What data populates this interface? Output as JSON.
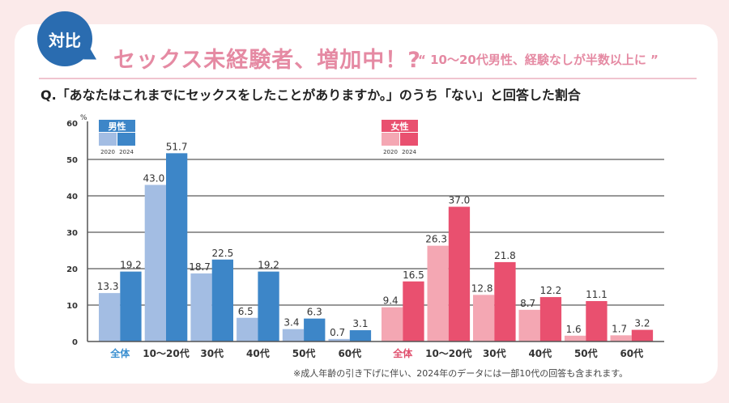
{
  "header": {
    "badge": "対比",
    "title": "セックス未経験者、増加中！?",
    "subtitle": "“ 10～20代男性、経験なしが半数以上に ”",
    "question": "Q.「あなたはこれまでにセックスをしたことがありますか。」のうち「ない」と回答した割合"
  },
  "chart_data": {
    "type": "bar",
    "ylabel": "%",
    "ylim": [
      0,
      60
    ],
    "yticks": [
      0,
      10,
      20,
      30,
      40,
      50,
      60
    ],
    "grid": true,
    "legend_placement": "top-left of each group",
    "groups": [
      {
        "name": "男性",
        "label_color": "#3a8fd0",
        "colors": {
          "2020": "#a3bde3",
          "2024": "#3d86c8"
        },
        "legend_years": [
          "2020",
          "2024"
        ],
        "categories": [
          "全体",
          "10～20代",
          "30代",
          "40代",
          "50代",
          "60代"
        ],
        "series": [
          {
            "name": "2020",
            "values": [
              13.3,
              43.0,
              18.7,
              6.5,
              3.4,
              0.7
            ]
          },
          {
            "name": "2024",
            "values": [
              19.2,
              51.7,
              22.5,
              19.2,
              6.3,
              3.1
            ]
          }
        ],
        "labels_2020": [
          "13.3",
          "43.0",
          "18.7",
          "6.5",
          "3.4",
          "0.7"
        ],
        "labels_2024": [
          "19.2",
          "51.7",
          "22.5",
          "19.2",
          "6.3",
          "3.1"
        ]
      },
      {
        "name": "女性",
        "label_color": "#e0506e",
        "colors": {
          "2020": "#f4a7b3",
          "2024": "#e9506f"
        },
        "legend_years": [
          "2020",
          "2024"
        ],
        "categories": [
          "全体",
          "10～20代",
          "30代",
          "40代",
          "50代",
          "60代"
        ],
        "series": [
          {
            "name": "2020",
            "values": [
              9.4,
              26.3,
              12.8,
              8.7,
              1.6,
              1.7
            ]
          },
          {
            "name": "2024",
            "values": [
              16.5,
              37.0,
              21.8,
              12.2,
              11.1,
              3.2
            ]
          }
        ],
        "labels_2020": [
          "9.4",
          "26.3",
          "12.8",
          "8.7",
          "1.6",
          "1.7"
        ],
        "labels_2024": [
          "16.5",
          "37.0",
          "21.8",
          "12.2",
          "11.1",
          "3.2"
        ]
      }
    ]
  },
  "footnote": "※成人年齢の引き下げに伴い、2024年のデータには一部10代の回答も含まれます。"
}
